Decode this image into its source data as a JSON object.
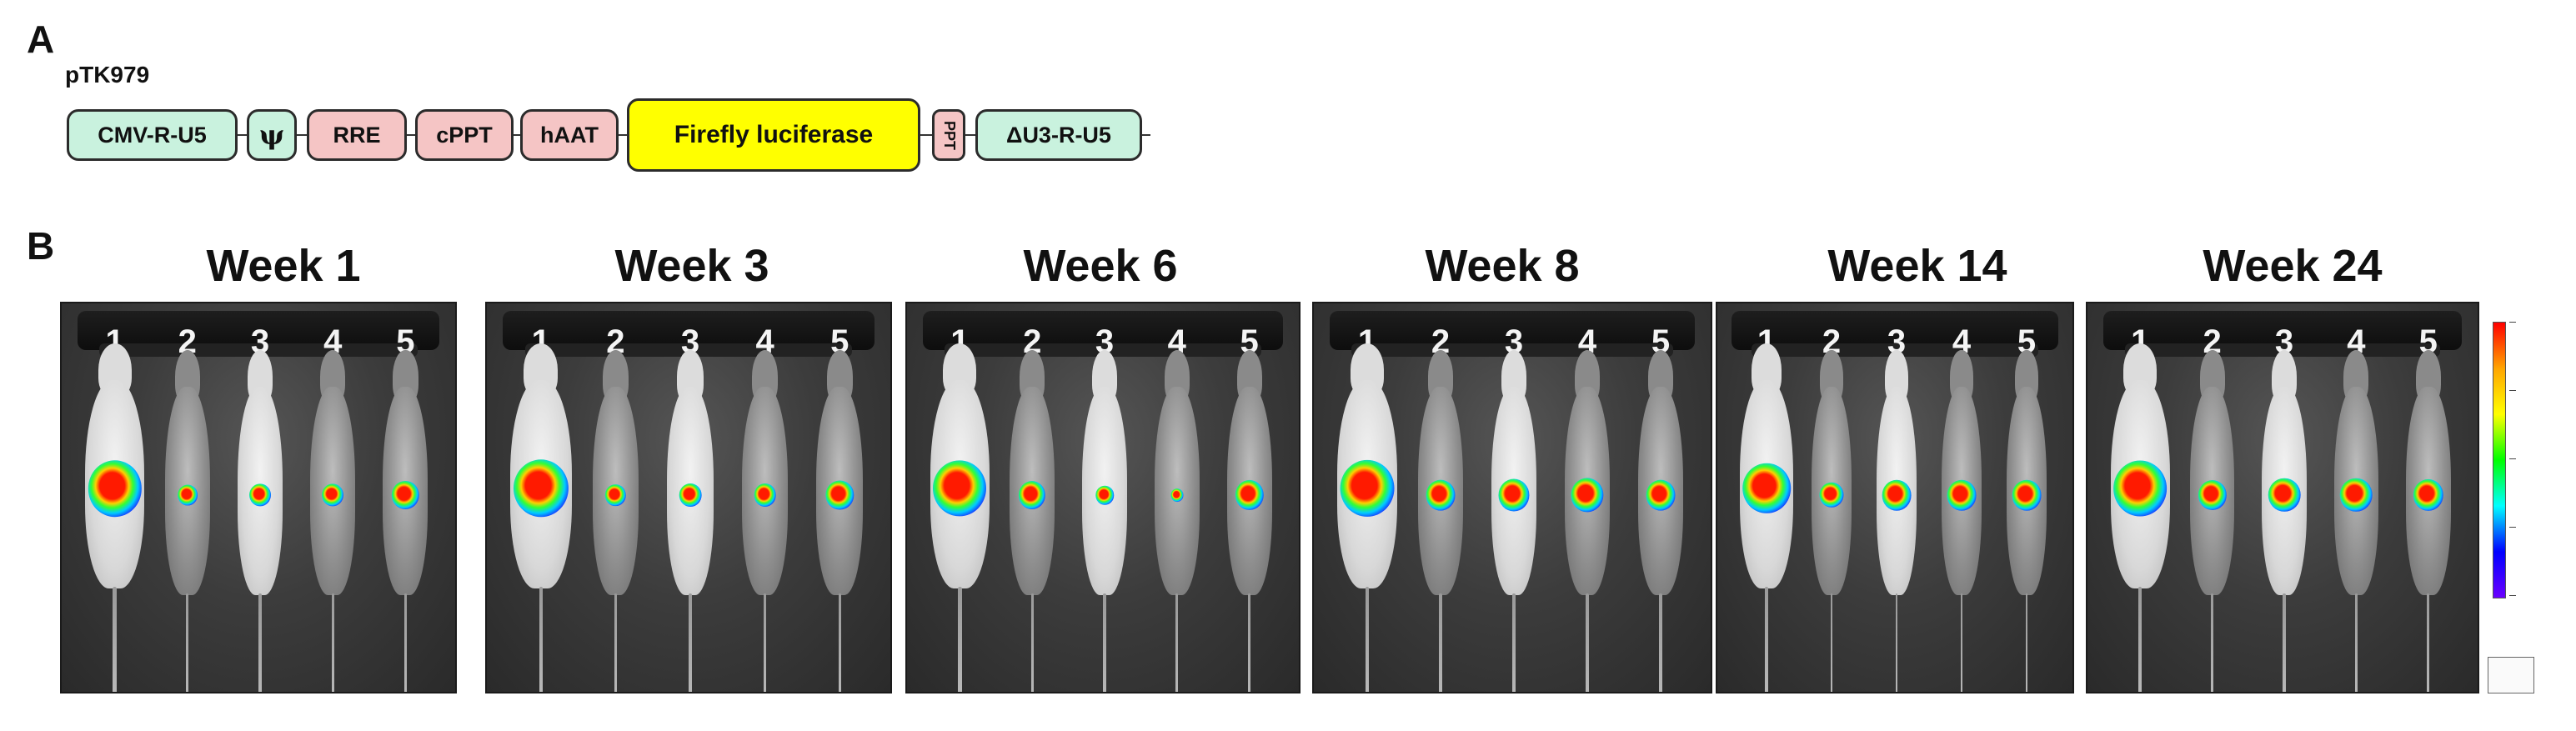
{
  "panel_a": {
    "label": "A",
    "plasmid": "pTK979",
    "elements": [
      {
        "label": "CMV-R-U5",
        "color": "#c9f2de"
      },
      {
        "label": "ψ",
        "color": "#c9f2de"
      },
      {
        "label": "RRE",
        "color": "#f5c5c5"
      },
      {
        "label": "cPPT",
        "color": "#f5c5c5"
      },
      {
        "label": "hAAT",
        "color": "#f5c5c5"
      },
      {
        "label": "Firefly luciferase",
        "color": "#ffff00"
      },
      {
        "label": "PPT",
        "color": "#f5c5c5"
      },
      {
        "label": "ΔU3-R-U5",
        "color": "#c9f2de"
      }
    ]
  },
  "panel_b": {
    "label": "B",
    "weeks": [
      {
        "title": "Week 1"
      },
      {
        "title": "Week 3"
      },
      {
        "title": "Week 6"
      },
      {
        "title": "Week 8"
      },
      {
        "title": "Week 14"
      },
      {
        "title": "Week 24"
      }
    ],
    "mouse_numbers": [
      "1",
      "2",
      "3",
      "4",
      "5"
    ]
  }
}
